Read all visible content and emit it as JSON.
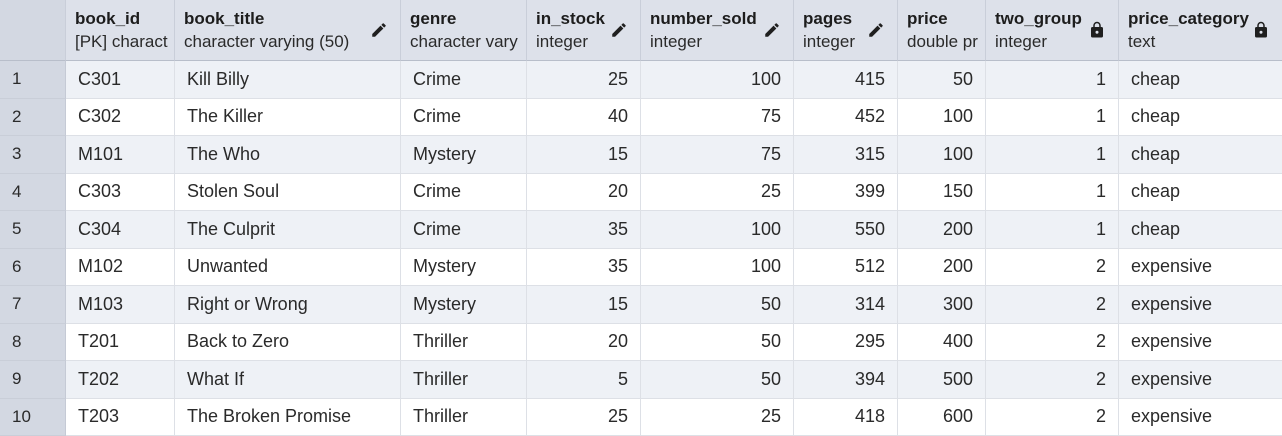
{
  "columns": [
    {
      "name": "book_id",
      "type": "[PK] charact",
      "icon": "",
      "align": "left"
    },
    {
      "name": "book_title",
      "type": "character varying (50)",
      "icon": "pencil-icon",
      "align": "left"
    },
    {
      "name": "genre",
      "type": "character vary",
      "icon": "",
      "align": "left"
    },
    {
      "name": "in_stock",
      "type": "integer",
      "icon": "pencil-icon",
      "align": "right"
    },
    {
      "name": "number_sold",
      "type": "integer",
      "icon": "pencil-icon",
      "align": "right"
    },
    {
      "name": "pages",
      "type": "integer",
      "icon": "pencil-icon",
      "align": "right"
    },
    {
      "name": "price",
      "type": "double pr",
      "icon": "",
      "align": "right"
    },
    {
      "name": "two_group",
      "type": "integer",
      "icon": "lock-icon",
      "align": "right"
    },
    {
      "name": "price_category",
      "type": "text",
      "icon": "lock-icon",
      "align": "left"
    }
  ],
  "rows": [
    {
      "num": "1",
      "cells": [
        "C301",
        "Kill Billy",
        "Crime",
        "25",
        "100",
        "415",
        "50",
        "1",
        "cheap"
      ]
    },
    {
      "num": "2",
      "cells": [
        "C302",
        "The Killer",
        "Crime",
        "40",
        "75",
        "452",
        "100",
        "1",
        "cheap"
      ]
    },
    {
      "num": "3",
      "cells": [
        "M101",
        "The Who",
        "Mystery",
        "15",
        "75",
        "315",
        "100",
        "1",
        "cheap"
      ]
    },
    {
      "num": "4",
      "cells": [
        "C303",
        "Stolen Soul",
        "Crime",
        "20",
        "25",
        "399",
        "150",
        "1",
        "cheap"
      ]
    },
    {
      "num": "5",
      "cells": [
        "C304",
        "The Culprit",
        "Crime",
        "35",
        "100",
        "550",
        "200",
        "1",
        "cheap"
      ]
    },
    {
      "num": "6",
      "cells": [
        "M102",
        "Unwanted",
        "Mystery",
        "35",
        "100",
        "512",
        "200",
        "2",
        "expensive"
      ]
    },
    {
      "num": "7",
      "cells": [
        "M103",
        "Right or Wrong",
        "Mystery",
        "15",
        "50",
        "314",
        "300",
        "2",
        "expensive"
      ]
    },
    {
      "num": "8",
      "cells": [
        "T201",
        "Back to Zero",
        "Thriller",
        "20",
        "50",
        "295",
        "400",
        "2",
        "expensive"
      ]
    },
    {
      "num": "9",
      "cells": [
        "T202",
        "What If",
        "Thriller",
        "5",
        "50",
        "394",
        "500",
        "2",
        "expensive"
      ]
    },
    {
      "num": "10",
      "cells": [
        "T203",
        "The Broken Promise",
        "Thriller",
        "25",
        "25",
        "418",
        "600",
        "2",
        "expensive"
      ]
    }
  ]
}
